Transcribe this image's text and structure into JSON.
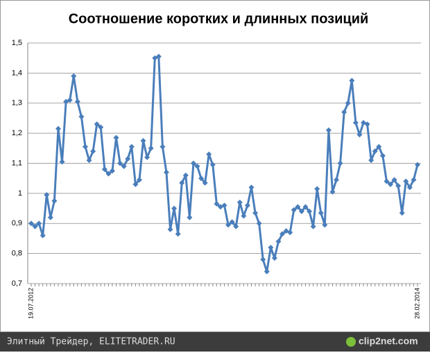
{
  "chart_data": {
    "type": "line",
    "title": "Соотношение коротких и длинных позиций",
    "categories": [
      "19.07.2012",
      null,
      null,
      null,
      null,
      null,
      null,
      null,
      null,
      null,
      null,
      null,
      null,
      null,
      null,
      null,
      null,
      null,
      null,
      null,
      null,
      null,
      null,
      null,
      null,
      null,
      null,
      null,
      null,
      null,
      null,
      null,
      null,
      null,
      null,
      null,
      null,
      null,
      null,
      null,
      null,
      null,
      null,
      null,
      null,
      null,
      null,
      null,
      null,
      null,
      null,
      null,
      null,
      null,
      null,
      null,
      null,
      null,
      null,
      null,
      null,
      null,
      null,
      null,
      null,
      null,
      null,
      null,
      null,
      null,
      null,
      null,
      null,
      null,
      null,
      null,
      null,
      null,
      null,
      null,
      null,
      null,
      null,
      null,
      null,
      null,
      null,
      null,
      null,
      null,
      null,
      null,
      null,
      null,
      null,
      null,
      null,
      null,
      null,
      null,
      "28.02.2014"
    ],
    "values": [
      0.9,
      0.89,
      0.9,
      0.86,
      0.995,
      0.92,
      0.975,
      1.215,
      1.105,
      1.305,
      1.31,
      1.39,
      1.305,
      1.255,
      1.155,
      1.11,
      1.14,
      1.23,
      1.22,
      1.08,
      1.065,
      1.075,
      1.185,
      1.1,
      1.09,
      1.115,
      1.155,
      1.03,
      1.045,
      1.175,
      1.12,
      1.15,
      1.45,
      1.455,
      1.155,
      1.07,
      0.88,
      0.95,
      0.865,
      1.035,
      1.06,
      0.92,
      1.1,
      1.09,
      1.05,
      1.035,
      1.13,
      1.095,
      0.965,
      0.955,
      0.96,
      0.895,
      0.905,
      0.89,
      0.97,
      0.925,
      0.96,
      1.02,
      0.935,
      0.9,
      0.78,
      0.74,
      0.82,
      0.785,
      0.84,
      0.865,
      0.875,
      0.87,
      0.945,
      0.955,
      0.94,
      0.955,
      0.94,
      0.89,
      1.015,
      0.935,
      0.895,
      1.21,
      1.005,
      1.045,
      1.1,
      1.27,
      1.3,
      1.375,
      1.235,
      1.195,
      1.235,
      1.23,
      1.11,
      1.14,
      1.155,
      1.125,
      1.04,
      1.03,
      1.045,
      1.025,
      0.935,
      1.04,
      1.02,
      1.045,
      1.095
    ],
    "color": "#4a7ebb",
    "ylim": [
      0.7,
      1.5
    ],
    "yticks": [
      {
        "value": 0.7,
        "label": "0,7"
      },
      {
        "value": 0.8,
        "label": "0,8"
      },
      {
        "value": 0.9,
        "label": "0,9"
      },
      1,
      {
        "value": 1.1,
        "label": "1,1"
      },
      {
        "value": 1.2,
        "label": "1,2"
      },
      {
        "value": 1.3,
        "label": "1,3"
      },
      {
        "value": 1.4,
        "label": "1,4"
      },
      {
        "value": 1.5,
        "label": "1,5"
      }
    ],
    "grid": true
  },
  "footer": {
    "source": "Элитный Трейдер, ELITETRADER.RU",
    "logo": "clip2net.com"
  }
}
